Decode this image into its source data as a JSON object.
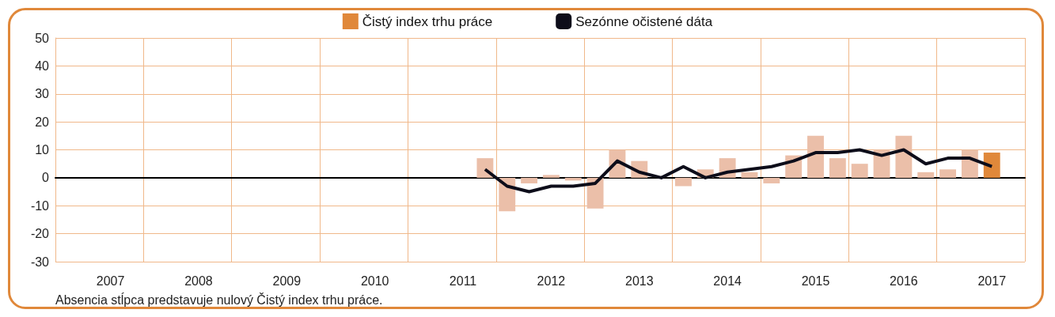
{
  "chart_data": {
    "type": "bar",
    "categories": [
      null,
      null,
      "2007",
      null,
      null,
      null,
      "2008",
      null,
      null,
      null,
      "2009",
      null,
      null,
      null,
      "2010",
      null,
      null,
      null,
      "2011",
      null,
      null,
      null,
      "2012",
      null,
      null,
      null,
      "2013",
      null,
      null,
      null,
      "2014",
      null,
      null,
      null,
      "2015",
      null,
      null,
      null,
      "2016",
      null,
      null,
      null,
      "2017",
      null
    ],
    "series": [
      {
        "name": "Čistý index trhu práce",
        "color": "#e0883a",
        "colors": [
          "#ebbfa9",
          "#ebbfa9",
          "#ebbfa9",
          "#ebbfa9",
          "#ebbfa9",
          "#ebbfa9",
          "#ebbfa9",
          "#ebbfa9",
          "#ebbfa9",
          "#ebbfa9",
          "#ebbfa9",
          "#ebbfa9",
          "#ebbfa9",
          "#ebbfa9",
          "#ebbfa9",
          "#ebbfa9",
          "#ebbfa9",
          "#ebbfa9",
          "#ebbfa9",
          "#ebbfa9",
          "#ebbfa9",
          "#ebbfa9",
          "#ebbfa9",
          "#ebbfa9",
          "#ebbfa9",
          "#ebbfa9",
          "#ebbfa9",
          "#ebbfa9",
          "#ebbfa9",
          "#ebbfa9",
          "#ebbfa9",
          "#ebbfa9",
          "#ebbfa9",
          "#ebbfa9",
          "#ebbfa9",
          "#ebbfa9",
          "#ebbfa9",
          "#ebbfa9",
          "#ebbfa9",
          "#ebbfa9",
          "#ebbfa9",
          "#ebbfa9",
          "#e0883a",
          "#ebbfa9"
        ],
        "values": [
          null,
          null,
          null,
          null,
          null,
          null,
          null,
          null,
          null,
          null,
          null,
          null,
          null,
          null,
          null,
          null,
          null,
          null,
          null,
          7,
          -12,
          -2,
          1,
          -1,
          -11,
          10,
          6,
          0,
          -3,
          3,
          7,
          2,
          -2,
          8,
          15,
          7,
          5,
          10,
          15,
          2,
          3,
          10,
          9,
          null
        ]
      },
      {
        "name": "Sezónne očistené dáta",
        "type": "line",
        "color": "#0d0d1a",
        "values": [
          null,
          null,
          null,
          null,
          null,
          null,
          null,
          null,
          null,
          null,
          null,
          null,
          null,
          null,
          null,
          null,
          null,
          null,
          null,
          3,
          -3,
          -5,
          -3,
          -3,
          -2,
          6,
          2,
          0,
          4,
          0,
          2,
          3,
          4,
          6,
          9,
          9,
          10,
          8,
          10,
          5,
          7,
          7,
          4,
          null
        ]
      }
    ],
    "ylim": [
      -30,
      50
    ],
    "yticks": [
      -30,
      -20,
      -10,
      0,
      10,
      20,
      30,
      40,
      50
    ],
    "grid": true,
    "legend": "top",
    "marker": "none",
    "annotations": [
      "Absencia stĺpca predstavuje nulový Čistý index trhu práce."
    ]
  }
}
